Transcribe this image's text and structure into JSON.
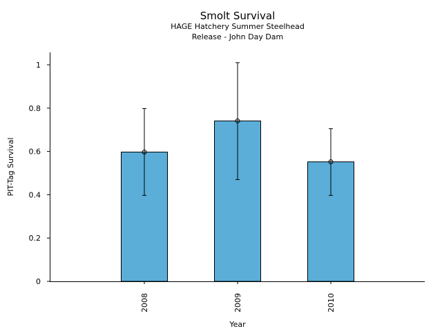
{
  "chart_data": {
    "type": "bar",
    "title": "Smolt Survival",
    "subtitle_line1": "HAGE Hatchery Summer Steelhead",
    "subtitle_line2": "Release - John Day Dam",
    "xlabel": "Year",
    "ylabel": "PIT-Tag Survival",
    "categories": [
      "2008",
      "2009",
      "2010"
    ],
    "values": [
      0.597,
      0.741,
      0.552
    ],
    "error_low": [
      0.397,
      0.47,
      0.397
    ],
    "error_high": [
      0.798,
      1.01,
      0.705
    ],
    "ylim": [
      0,
      1.06
    ],
    "yticks": [
      0,
      0.2,
      0.4,
      0.6,
      0.8,
      1
    ],
    "ytick_labels": [
      "0",
      "0.2",
      "0.4",
      "0.6",
      "0.8",
      "1"
    ],
    "grid": false,
    "bar_color": "#5aaed8",
    "edge_color": "#000000"
  }
}
